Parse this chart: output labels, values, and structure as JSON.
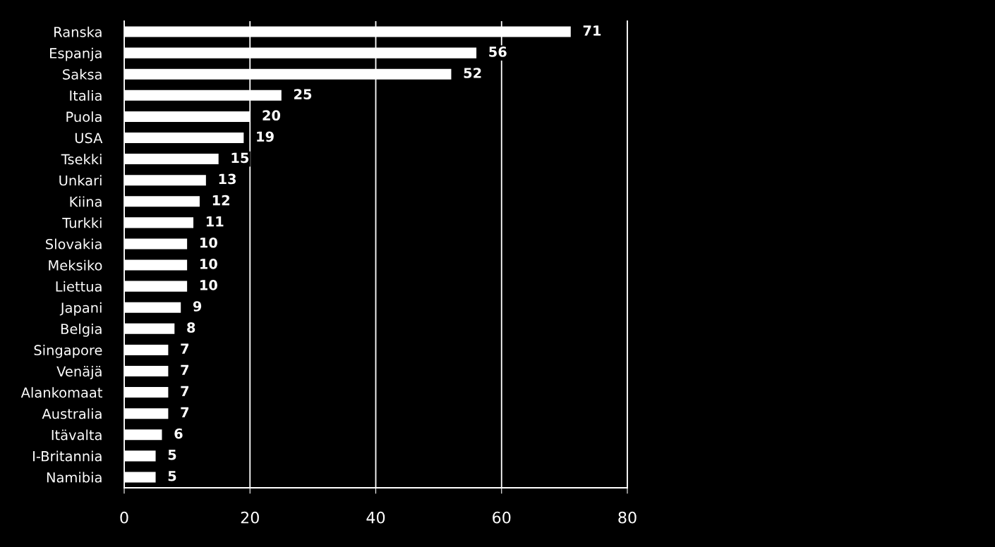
{
  "chart_data": {
    "type": "bar",
    "orientation": "horizontal",
    "categories": [
      "Ranska",
      "Espanja",
      "Saksa",
      "Italia",
      "Puola",
      "USA",
      "Tsekki",
      "Unkari",
      "Kiina",
      "Turkki",
      "Slovakia",
      "Meksiko",
      "Liettua",
      "Japani",
      "Belgia",
      "Singapore",
      "Venäjä",
      "Alankomaat",
      "Australia",
      "Itävalta",
      "I-Britannia",
      "Namibia"
    ],
    "values": [
      71,
      56,
      52,
      25,
      20,
      19,
      15,
      13,
      12,
      11,
      10,
      10,
      10,
      9,
      8,
      7,
      7,
      7,
      7,
      6,
      5,
      5
    ],
    "color": "#ffffff",
    "xlim": [
      0,
      80
    ],
    "xticks": [
      0,
      20,
      40,
      60,
      80
    ],
    "grid": "x",
    "data_labels": true
  }
}
